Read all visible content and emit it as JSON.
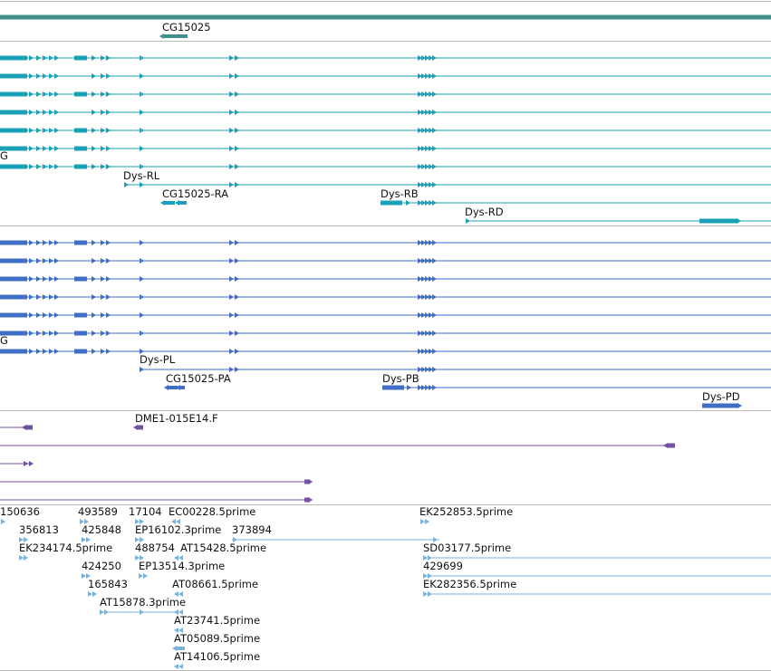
{
  "colors": {
    "genes": "#3f8f8c",
    "transcripts": "#1ba1b8",
    "proteins": "#3e6ec6",
    "clones": "#7352a6",
    "ests": "#7ab4dc",
    "divider": "#bbbbbb"
  },
  "tracks": [
    {
      "id": "genes",
      "features": [
        {
          "label": "CG15025"
        }
      ]
    },
    {
      "id": "transcripts",
      "features": [
        {
          "label": ""
        },
        {
          "label": ""
        },
        {
          "label": ""
        },
        {
          "label": ""
        },
        {
          "label": ""
        },
        {
          "label": ""
        },
        {
          "label": "G"
        },
        {
          "label": "Dys-RL"
        },
        {
          "label": "CG15025-RA"
        },
        {
          "label": "Dys-RB"
        },
        {
          "label": "Dys-RD"
        }
      ]
    },
    {
      "id": "proteins",
      "features": [
        {
          "label": ""
        },
        {
          "label": ""
        },
        {
          "label": ""
        },
        {
          "label": ""
        },
        {
          "label": ""
        },
        {
          "label": ""
        },
        {
          "label": "G"
        },
        {
          "label": "Dys-PL"
        },
        {
          "label": "CG15025-PA"
        },
        {
          "label": "Dys-PB"
        },
        {
          "label": "Dys-PD"
        }
      ]
    },
    {
      "id": "clones",
      "features": [
        {
          "label": ""
        },
        {
          "label": "DME1-015E14.F"
        },
        {
          "label": ""
        },
        {
          "label": ""
        },
        {
          "label": ""
        }
      ]
    },
    {
      "id": "ests",
      "features": [
        {
          "label": "150636"
        },
        {
          "label": "356813"
        },
        {
          "label": "EK234174.5prime"
        },
        {
          "label": "493589"
        },
        {
          "label": "425848"
        },
        {
          "label": "424250"
        },
        {
          "label": "165843"
        },
        {
          "label": "17104"
        },
        {
          "label": "EP16102.3prime"
        },
        {
          "label": "488754"
        },
        {
          "label": "EP13514.3prime"
        },
        {
          "label": "AT15878.3prime"
        },
        {
          "label": "EC00228.5prime"
        },
        {
          "label": "AT15428.5prime"
        },
        {
          "label": "AT08661.5prime"
        },
        {
          "label": "AT23741.5prime"
        },
        {
          "label": "AT05089.5prime"
        },
        {
          "label": "AT14106.5prime"
        },
        {
          "label": "373894"
        },
        {
          "label": "EK252853.5prime"
        },
        {
          "label": "SD03177.5prime"
        },
        {
          "label": "429699"
        },
        {
          "label": "EK282356.5prime"
        }
      ]
    }
  ]
}
